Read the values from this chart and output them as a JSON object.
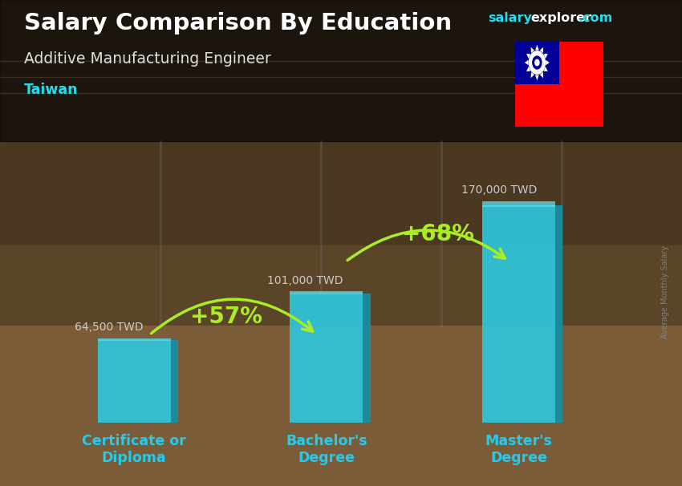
{
  "title_main": "Salary Comparison By Education",
  "title_sub": "Additive Manufacturing Engineer",
  "title_country": "Taiwan",
  "ylabel": "Average Monthly Salary",
  "categories": [
    "Certificate or\nDiploma",
    "Bachelor's\nDegree",
    "Master's\nDegree"
  ],
  "values": [
    64500,
    101000,
    170000
  ],
  "value_labels": [
    "64,500 TWD",
    "101,000 TWD",
    "170,000 TWD"
  ],
  "pct_labels": [
    "+57%",
    "+68%"
  ],
  "bar_face_color": "#2ec8e0",
  "bar_right_color": "#1590a8",
  "bar_top_color": "#5de0f0",
  "arrow_color": "#aaee22",
  "title_color": "#ffffff",
  "sub_title_color": "#e0e0e0",
  "country_color": "#22ddee",
  "value_label_color": "#cccccc",
  "pct_color": "#aaee22",
  "xtick_color": "#22ccee",
  "bar_width": 0.38,
  "ylim": [
    0,
    220000
  ],
  "brand_color_salary": "#22ddee",
  "brand_color_explorer": "#ffffff",
  "brand_color_com": "#22ddee",
  "bg_top_color": "#2a1f10",
  "bg_bottom_color": "#7a6040",
  "bar_area_bg": "#6a5030"
}
